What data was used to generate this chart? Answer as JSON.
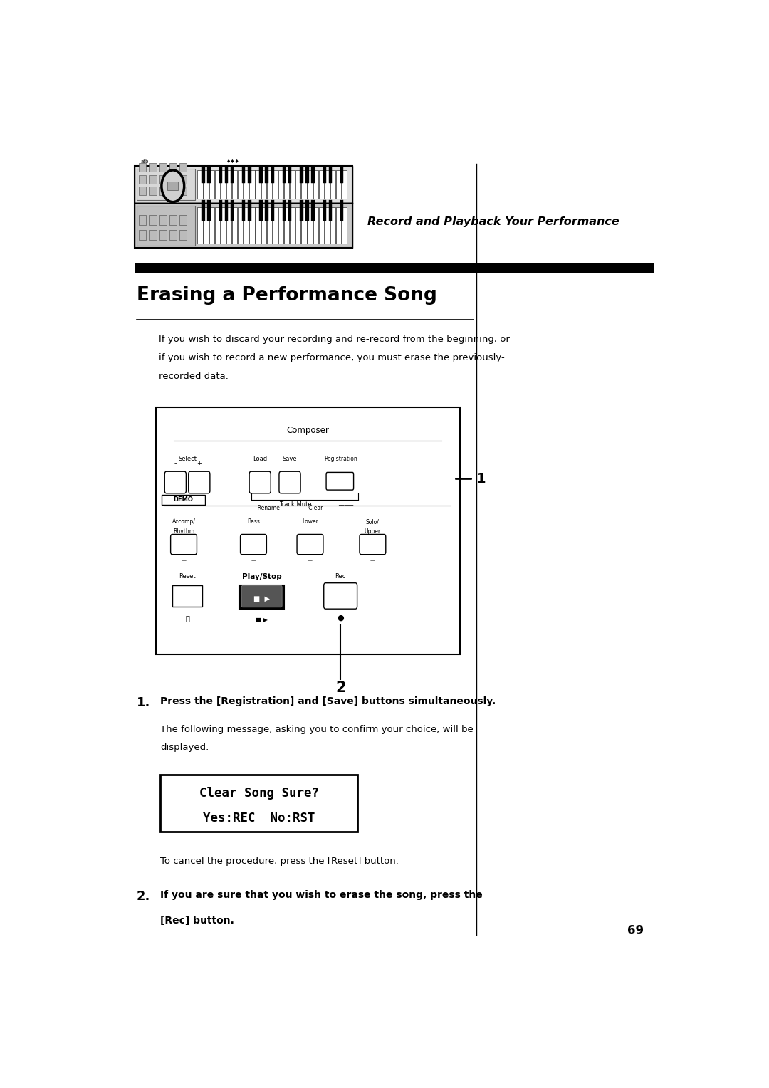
{
  "bg_color": "#ffffff",
  "page_width": 10.8,
  "page_height": 15.28,
  "header_title": "Record and Playback Your Performance",
  "section_title": "Erasing a Performance Song",
  "intro_text_1": "If you wish to discard your recording and re-record from the beginning, or",
  "intro_text_2": "if you wish to record a new performance, you must erase the previously-",
  "intro_text_3": "recorded data.",
  "step1_num": "1.",
  "step1_bold": "Press the [Registration] and [Save] buttons simultaneously.",
  "step1_body_1": "The following message, asking you to confirm your choice, will be",
  "step1_body_2": "displayed.",
  "lcd_line1": "Clear Song Sure?",
  "lcd_line2": "Yes:REC  No:RST",
  "cancel_text": "To cancel the procedure, press the [Reset] button.",
  "step2_num": "2.",
  "step2_bold_1": "If you are sure that you wish to erase the song, press the",
  "step2_bold_2": "[Rec] button.",
  "page_number": "69",
  "vline_x": 0.638,
  "composer_label": "Composer",
  "track_mute_label": "Track Mute",
  "select_label": "Select",
  "load_label": "Load",
  "save_label": "Save",
  "registration_label": "Registration",
  "demo_label": "DEMO",
  "rename_label": "Rename",
  "clear_label": "Clear",
  "accomp_label": "Accomp/\nRhythm",
  "bass_label": "Bass",
  "lower_label": "Lower",
  "solo_label": "Solo/\nUpper",
  "reset_label": "Reset",
  "playstop_label": "Play/Stop",
  "rec_label": "Rec"
}
